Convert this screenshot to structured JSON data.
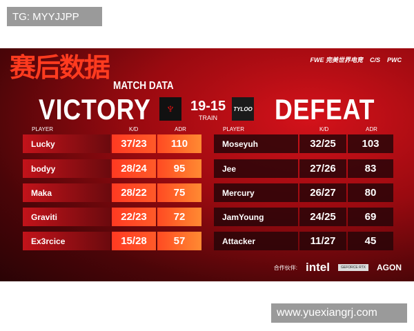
{
  "watermarks": {
    "top": "TG: MYYJJPP",
    "bottom": "www.yuexiangrj.com"
  },
  "title_cn": "赛后数据",
  "title_en": "MATCH DATA",
  "sponsors_top": [
    "FWE 完美世界电竞",
    "C/S",
    "PWC"
  ],
  "left": {
    "result": "VICTORY",
    "logo": "team-logo-devil",
    "players": [
      {
        "name": "Lucky",
        "kd": "37/23",
        "adr": "110"
      },
      {
        "name": "bodyy",
        "kd": "28/24",
        "adr": "95"
      },
      {
        "name": "Maka",
        "kd": "28/22",
        "adr": "75"
      },
      {
        "name": "Graviti",
        "kd": "22/23",
        "adr": "72"
      },
      {
        "name": "Ex3rcice",
        "kd": "15/28",
        "adr": "57"
      }
    ]
  },
  "right": {
    "result": "DEFEAT",
    "logo": "TYLOO",
    "players": [
      {
        "name": "Moseyuh",
        "kd": "32/25",
        "adr": "103"
      },
      {
        "name": "Jee",
        "kd": "27/26",
        "adr": "83"
      },
      {
        "name": "Mercury",
        "kd": "26/27",
        "adr": "80"
      },
      {
        "name": "JamYoung",
        "kd": "24/25",
        "adr": "69"
      },
      {
        "name": "Attacker",
        "kd": "11/27",
        "adr": "45"
      }
    ]
  },
  "score": "19-15",
  "map": "TRAIN",
  "headers": {
    "player": "PLAYER",
    "kd": "K/D",
    "adr": "ADR"
  },
  "partners": {
    "label": "合作伙伴:",
    "intel": "intel",
    "geforce": "GEFORCE RTX",
    "agon": "AGON"
  }
}
